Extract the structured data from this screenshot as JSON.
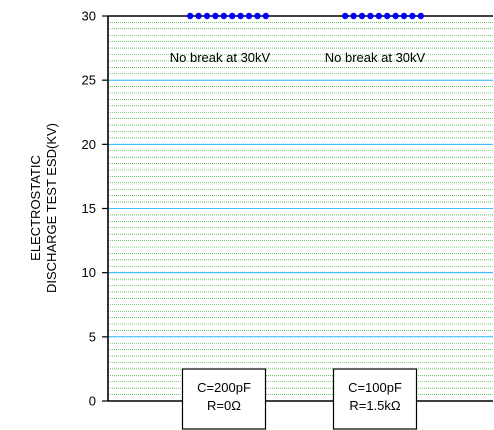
{
  "chart_data": {
    "type": "scatter",
    "title": "",
    "ylabel_lines": [
      "ELECTROSTATIC",
      "DISCHARGE TEST ESD(KV)"
    ],
    "ylim": [
      0,
      30
    ],
    "yticks": [
      0,
      5,
      10,
      15,
      20,
      25,
      30
    ],
    "minor_grid_step": 0.5,
    "grid": true,
    "colors": {
      "major_grid": "#00aaff",
      "minor_grid": "#00aa00",
      "points": "#0000ff",
      "axis": "#000000"
    },
    "groups": [
      {
        "annotation": "No break at 30kV",
        "condition_lines": [
          "C=200pF",
          "R=0Ω"
        ],
        "values": [
          30,
          30,
          30,
          30,
          30,
          30,
          30,
          30,
          30,
          30
        ]
      },
      {
        "annotation": "No break at 30kV",
        "condition_lines": [
          "C=100pF",
          "R=1.5kΩ"
        ],
        "values": [
          30,
          30,
          30,
          30,
          30,
          30,
          30,
          30,
          30,
          30
        ]
      }
    ]
  }
}
